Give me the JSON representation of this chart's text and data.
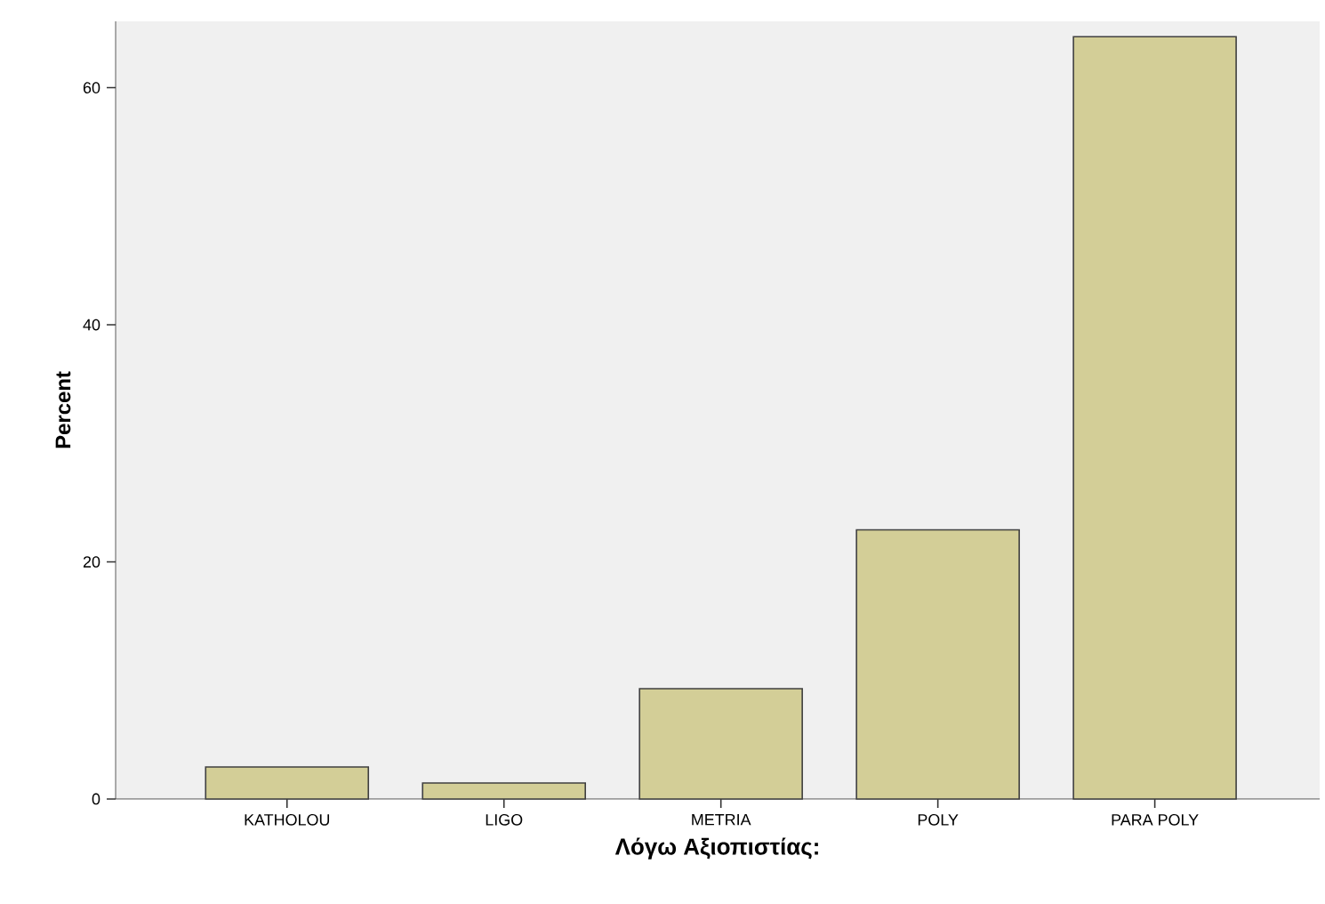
{
  "chart_data": {
    "type": "bar",
    "xlabel": "Λόγω Αξιοπιστίας:",
    "ylabel": "Percent",
    "categories": [
      "KATHOLOU",
      "LIGO",
      "METRIA",
      "POLY",
      "PARA POLY"
    ],
    "values": [
      2.7,
      1.35,
      9.3,
      22.7,
      64.3
    ],
    "color": "#d3ce97",
    "ylim": [
      0,
      65.6
    ],
    "yticks": [
      0,
      20,
      40,
      60
    ],
    "grid": false
  }
}
